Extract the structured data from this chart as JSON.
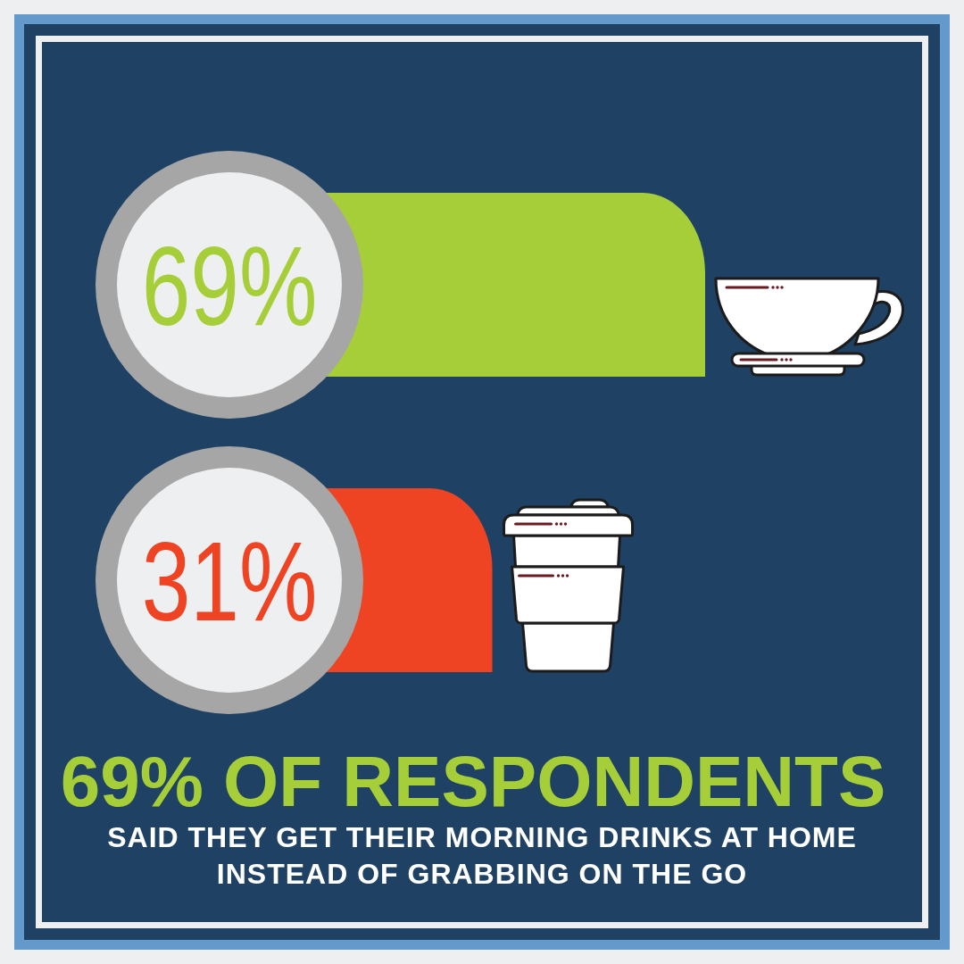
{
  "chart_data": {
    "type": "bar",
    "orientation": "horizontal",
    "title": "69% OF RESPONDENTS",
    "subtitle": "SAID THEY GET THEIR MORNING DRINKS AT HOME INSTEAD OF GRABBING ON THE GO",
    "categories": [
      null,
      null
    ],
    "values": [
      69,
      31
    ],
    "colors": [
      "#a6ce39",
      "#ee4423"
    ],
    "value_labels": [
      "69%",
      "31%"
    ]
  }
}
